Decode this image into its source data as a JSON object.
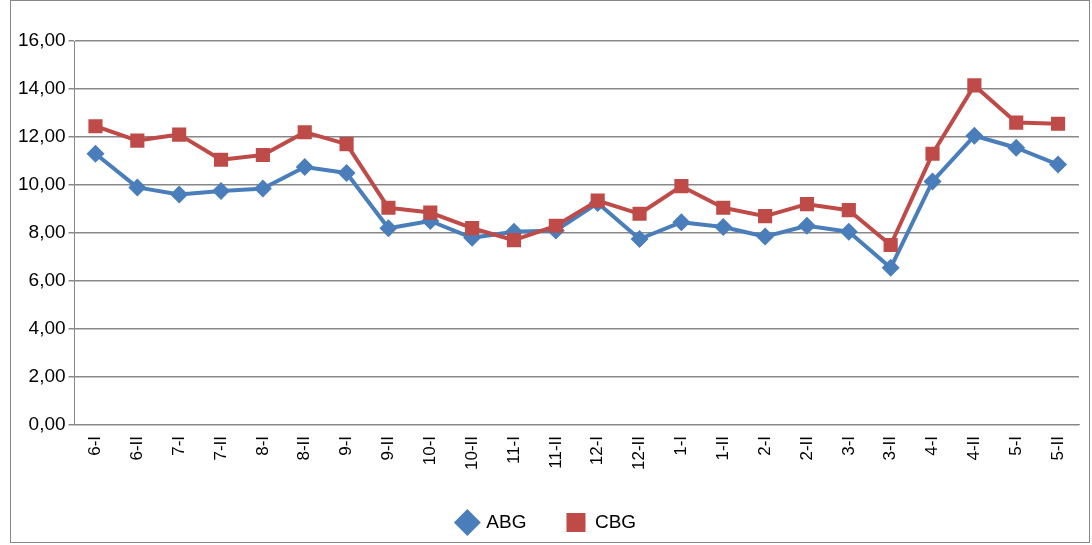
{
  "chart_data": {
    "type": "line",
    "categories": [
      "6-I",
      "6-II",
      "7-I",
      "7-II",
      "8-I",
      "8-II",
      "9-I",
      "9-II",
      "10-I",
      "10-II",
      "11-I",
      "11-II",
      "12-I",
      "12-II",
      "1-I",
      "1-II",
      "2-I",
      "2-II",
      "3-I",
      "3-II",
      "4-I",
      "4-II",
      "5-I",
      "5-II"
    ],
    "series": [
      {
        "name": "ABG",
        "color": "#4a7ebb",
        "marker": "diamond",
        "values": [
          11.3,
          9.9,
          9.6,
          9.75,
          9.85,
          10.75,
          10.5,
          8.2,
          8.5,
          7.8,
          8.05,
          8.1,
          9.25,
          7.75,
          8.45,
          8.25,
          7.85,
          8.3,
          8.05,
          6.55,
          10.15,
          12.05,
          11.55,
          10.85
        ]
      },
      {
        "name": "CBG",
        "color": "#be4b48",
        "marker": "square",
        "values": [
          12.45,
          11.85,
          12.1,
          11.05,
          11.25,
          12.2,
          11.7,
          9.05,
          8.85,
          8.2,
          7.7,
          8.3,
          9.35,
          8.8,
          9.95,
          9.05,
          8.7,
          9.2,
          8.95,
          7.5,
          11.3,
          14.15,
          12.6,
          12.55
        ]
      }
    ],
    "ylim": [
      0,
      16
    ],
    "yticks": [
      {
        "value": 0,
        "label": "0,00"
      },
      {
        "value": 2,
        "label": "2,00"
      },
      {
        "value": 4,
        "label": "4,00"
      },
      {
        "value": 6,
        "label": "6,00"
      },
      {
        "value": 8,
        "label": "8,00"
      },
      {
        "value": 10,
        "label": "10,00"
      },
      {
        "value": 12,
        "label": "12,00"
      },
      {
        "value": 14,
        "label": "14,00"
      },
      {
        "value": 16,
        "label": "16,00"
      }
    ],
    "grid": "y",
    "legend": "bottom",
    "line_style": "solid"
  }
}
